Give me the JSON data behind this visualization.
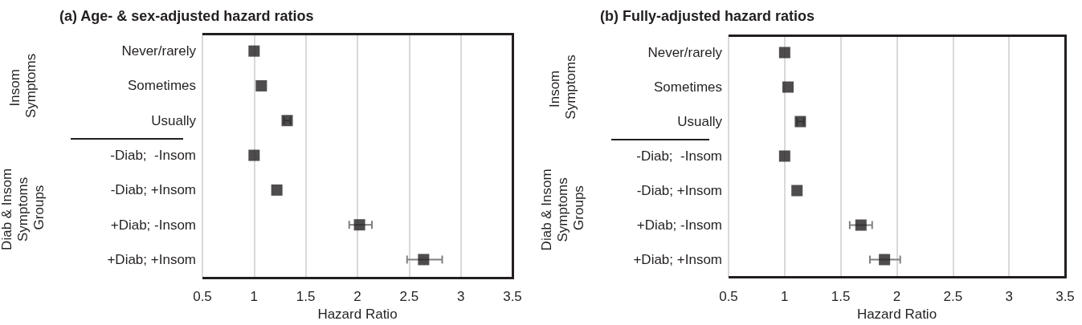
{
  "chart_data": [
    {
      "type": "scatter",
      "title": "(a) Age- & sex-adjusted hazard ratios",
      "xlabel": "Hazard Ratio",
      "orientation": "horizontal",
      "categories": [
        "Never/rarely",
        "Sometimes",
        "Usually",
        "-Diab;  -Insom",
        "-Diab; +Insom",
        "+Diab; -Insom",
        "+Diab; +Insom"
      ],
      "values": [
        1.0,
        1.07,
        1.32,
        1.0,
        1.22,
        2.02,
        2.64
      ],
      "errors": [
        null,
        null,
        [
          1.29,
          1.35
        ],
        null,
        null,
        [
          1.92,
          2.14
        ],
        [
          2.48,
          2.82
        ]
      ],
      "color": "#231f20",
      "marker": "square",
      "grid": "x",
      "xlim": [
        0.5,
        3.5
      ],
      "xticks": [
        0.5,
        1,
        1.5,
        2,
        2.5,
        3,
        3.5
      ],
      "annotations": [
        "Insom Symptoms",
        "Diab & Insom Symptoms Groups"
      ]
    },
    {
      "type": "scatter",
      "title": "(b) Fully-adjusted hazard ratios",
      "xlabel": "Hazard Ratio",
      "orientation": "horizontal",
      "categories": [
        "Never/rarely",
        "Sometimes",
        "Usually",
        "-Diab;  -Insom",
        "-Diab; +Insom",
        "+Diab; -Insom",
        "+Diab; +Insom"
      ],
      "values": [
        1.0,
        1.03,
        1.14,
        1.0,
        1.11,
        1.68,
        1.89
      ],
      "errors": [
        null,
        null,
        [
          1.11,
          1.17
        ],
        null,
        null,
        [
          1.58,
          1.78
        ],
        [
          1.76,
          2.03
        ]
      ],
      "color": "#231f20",
      "marker": "square",
      "grid": "x",
      "xlim": [
        0.5,
        3.5
      ],
      "xticks": [
        0.5,
        1,
        1.5,
        2,
        2.5,
        3,
        3.5
      ],
      "annotations": [
        "Insom Symptoms",
        "Diab & Insom Symptoms Groups"
      ]
    }
  ]
}
